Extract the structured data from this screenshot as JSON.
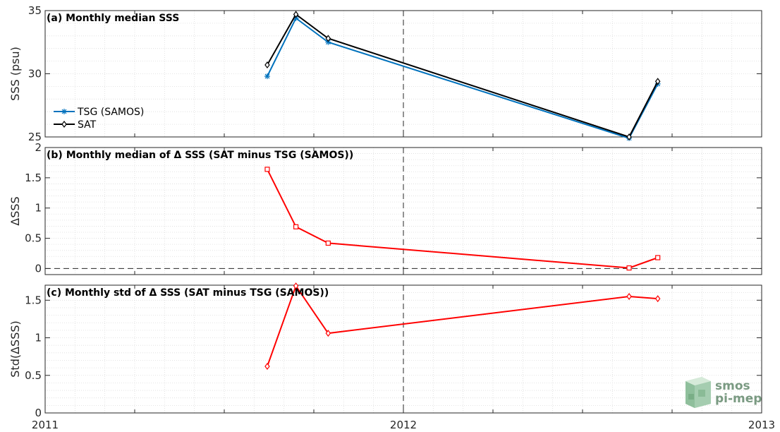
{
  "x_axis": {
    "ticks": [
      "2011",
      "2012",
      "2013"
    ],
    "range": [
      2011.0,
      2013.0
    ],
    "marker_line_at": 2012.0
  },
  "logo": {
    "line1": "smos",
    "line2": "pi-mep"
  },
  "colors": {
    "tsg": "#0072BD",
    "sat": "#000000",
    "delta": "#FF0000",
    "grid": "#dcdcdc"
  },
  "chart_data": [
    {
      "type": "line",
      "title": "(a) Monthly median SSS",
      "ylabel": "SSS (psu)",
      "ylim": [
        25,
        35
      ],
      "yticks": [
        "25",
        "30",
        "35"
      ],
      "yticks_values": [
        25,
        30,
        35
      ],
      "grid": true,
      "legend_position": "left",
      "series": [
        {
          "name": "TSG (SAMOS)",
          "marker": "asterisk",
          "color": "#0072BD",
          "x": [
            2011.62,
            2011.7,
            2011.79,
            2012.63,
            2012.71
          ],
          "y": [
            29.8,
            34.4,
            32.5,
            24.9,
            29.2
          ]
        },
        {
          "name": "SAT",
          "marker": "diamond",
          "color": "#000000",
          "x": [
            2011.62,
            2011.7,
            2011.79,
            2012.63,
            2012.71
          ],
          "y": [
            30.7,
            34.7,
            32.8,
            25.0,
            29.4
          ]
        }
      ]
    },
    {
      "type": "line",
      "title": "(b) Monthly median of Δ SSS (SAT minus TSG (SAMOS))",
      "ylabel": "ΔSSS",
      "ylim": [
        -0.1,
        2
      ],
      "yticks": [
        "0",
        "0.5",
        "1",
        "1.5",
        "2"
      ],
      "yticks_values": [
        0,
        0.5,
        1,
        1.5,
        2
      ],
      "zero_line": 0,
      "grid": true,
      "series": [
        {
          "marker": "square",
          "color": "#FF0000",
          "x": [
            2011.62,
            2011.7,
            2011.79,
            2012.63,
            2012.71
          ],
          "y": [
            1.64,
            0.69,
            0.42,
            0.01,
            0.18
          ]
        }
      ]
    },
    {
      "type": "line",
      "title": "(c) Monthly std of Δ SSS (SAT minus TSG (SAMOS))",
      "ylabel": "Std(ΔSSS)",
      "ylim": [
        0,
        1.7
      ],
      "yticks": [
        "0",
        "0.5",
        "1",
        "1.5"
      ],
      "yticks_values": [
        0,
        0.5,
        1,
        1.5
      ],
      "grid": true,
      "series": [
        {
          "marker": "diamond",
          "color": "#FF0000",
          "x": [
            2011.62,
            2011.7,
            2011.79,
            2012.63,
            2012.71
          ],
          "y": [
            0.62,
            1.69,
            1.06,
            1.55,
            1.52
          ]
        }
      ]
    }
  ]
}
